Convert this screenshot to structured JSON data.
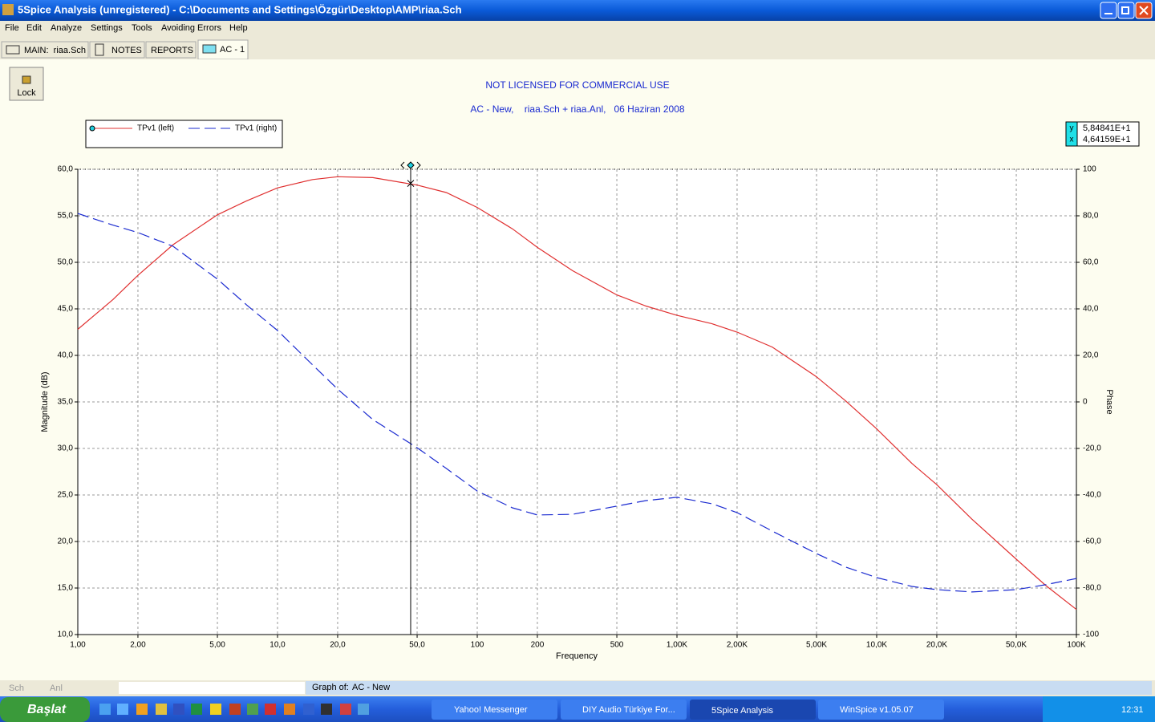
{
  "window": {
    "title": "5Spice Analysis (unregistered) - C:\\Documents and Settings\\Özgür\\Desktop\\AMP\\riaa.Sch",
    "menu": [
      "File",
      "Edit",
      "Analyze",
      "Settings",
      "Tools",
      "Avoiding Errors",
      "Help"
    ],
    "tabs": [
      "MAIN:  riaa.Sch",
      "NOTES",
      "REPORTS",
      "AC - 1"
    ],
    "lock": "Lock"
  },
  "status": {
    "sch": "Sch",
    "anl": "Anl",
    "graph_of": "Graph of:",
    "graph_name": "AC - New"
  },
  "taskbar": {
    "start": "Başlat",
    "tasks": [
      "Yahoo! Messenger",
      "DIY Audio Türkiye For...",
      "5Spice Analysis",
      "WinSpice v1.05.07"
    ],
    "clock": "12:31"
  },
  "chart_data": {
    "type": "line",
    "title": "NOT LICENSED FOR COMMERCIAL USE",
    "subtitle": "AC - New,    riaa.Sch + riaa.Anl,   06 Haziran 2008",
    "x_label": "Frequency",
    "y_label": "Magnitude (dB)",
    "y2_label": "Phase",
    "xscale": "log",
    "grid": true,
    "legend": "top-left",
    "x": [
      1,
      1.5,
      2,
      3,
      5,
      7,
      10,
      15,
      20,
      30,
      50,
      70,
      100,
      150,
      200,
      300,
      500,
      700,
      1000,
      1500,
      2000,
      3000,
      5000,
      7000,
      10000,
      15000,
      20000,
      30000,
      50000,
      70000,
      100000
    ],
    "series": [
      {
        "name": "TPv1 (left)",
        "color": "#e03030",
        "line_style": "solid",
        "values": [
          42.8,
          46.0,
          48.6,
          51.9,
          55.1,
          56.6,
          58.0,
          58.9,
          59.2,
          59.1,
          58.3,
          57.5,
          55.9,
          53.6,
          51.6,
          49.1,
          46.5,
          45.3,
          44.3,
          43.4,
          42.5,
          40.9,
          37.7,
          35.1,
          32.1,
          28.4,
          26.1,
          22.4,
          18.1,
          15.3,
          12.7
        ]
      },
      {
        "name": "TPv1 (right)",
        "color": "#1a2ad0",
        "line_style": "dashed",
        "axis": "y2",
        "values": [
          81.0,
          76.0,
          72.8,
          66.9,
          52.8,
          41.7,
          30.7,
          15.9,
          5.5,
          -7.6,
          -19.7,
          -28.6,
          -38.3,
          -45.5,
          -48.6,
          -48.3,
          -44.8,
          -42.4,
          -41.0,
          -43.8,
          -47.6,
          -55.5,
          -65.2,
          -71.0,
          -75.5,
          -79.3,
          -80.7,
          -81.7,
          -80.7,
          -78.6,
          -75.9
        ]
      }
    ],
    "xlim": [
      1,
      100000
    ],
    "xticks": [
      {
        "value": 1,
        "label": "1,00"
      },
      {
        "value": 2,
        "label": "2,00"
      },
      {
        "value": 5,
        "label": "5,00"
      },
      {
        "value": 10,
        "label": "10,0"
      },
      {
        "value": 20,
        "label": "20,0"
      },
      {
        "value": 50,
        "label": "50,0"
      },
      100,
      200,
      500,
      {
        "value": 1000,
        "label": "1,00K"
      },
      {
        "value": 2000,
        "label": "2,00K"
      },
      {
        "value": 5000,
        "label": "5,00K"
      },
      {
        "value": 10000,
        "label": "10,0K"
      },
      {
        "value": 20000,
        "label": "20,0K"
      },
      {
        "value": 50000,
        "label": "50,0K"
      },
      {
        "value": 100000,
        "label": "100K"
      }
    ],
    "ylim": [
      10,
      60
    ],
    "yticks": [
      {
        "value": 10,
        "label": "10,0"
      },
      {
        "value": 15,
        "label": "15,0"
      },
      {
        "value": 20,
        "label": "20,0"
      },
      {
        "value": 25,
        "label": "25,0"
      },
      {
        "value": 30,
        "label": "30,0"
      },
      {
        "value": 35,
        "label": "35,0"
      },
      {
        "value": 40,
        "label": "40,0"
      },
      {
        "value": 45,
        "label": "45,0"
      },
      {
        "value": 50,
        "label": "50,0"
      },
      {
        "value": 55,
        "label": "55,0"
      },
      {
        "value": 60,
        "label": "60,0"
      }
    ],
    "y2lim": [
      -100,
      100
    ],
    "y2ticks": [
      -100,
      {
        "value": -80,
        "label": "-80,0"
      },
      {
        "value": -60,
        "label": "-60,0"
      },
      {
        "value": -40,
        "label": "-40,0"
      },
      {
        "value": -20,
        "label": "-20,0"
      },
      0,
      {
        "value": 20,
        "label": "20,0"
      },
      {
        "value": 40,
        "label": "40,0"
      },
      {
        "value": 60,
        "label": "60,0"
      },
      {
        "value": 80,
        "label": "80,0"
      },
      100
    ],
    "cursor": {
      "x": 46.4159,
      "y": 58.4841,
      "x_name": "x",
      "y_name": "y",
      "x_label": "4,64159E+1",
      "y_label": "5,84841E+1"
    }
  }
}
